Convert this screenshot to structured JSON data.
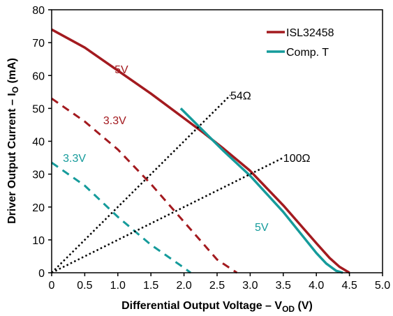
{
  "chart_data": {
    "type": "line",
    "xlabel": {
      "main": "Differential Output Voltage – V",
      "sub": "OD",
      "unit": " (V)"
    },
    "ylabel": {
      "main": "Driver Output Current – I",
      "sub": "O",
      "unit": " (mA)"
    },
    "xlim": [
      0,
      5
    ],
    "ylim": [
      0,
      80
    ],
    "xticks": [
      "0",
      "0.5",
      "1.0",
      "1.5",
      "2.0",
      "2.5",
      "3.0",
      "3.5",
      "4.0",
      "4.5",
      "5.0"
    ],
    "yticks": [
      "0",
      "10",
      "20",
      "30",
      "40",
      "50",
      "60",
      "70",
      "80"
    ],
    "grid": false,
    "legend_position": "top-right",
    "colors": {
      "isl": "#a31a1f",
      "comp": "#159b9b",
      "load": "#000000"
    },
    "series": [
      {
        "name": "ISL32458",
        "supply": "5V",
        "color": "#a31a1f",
        "style": "solid",
        "x": [
          0,
          0.5,
          1.0,
          1.5,
          2.0,
          2.3,
          2.6,
          3.0,
          3.5,
          4.0,
          4.2,
          4.35,
          4.5
        ],
        "y": [
          74,
          68.5,
          61.5,
          54.5,
          47,
          42.5,
          37.7,
          31,
          20.5,
          9,
          4.5,
          1.8,
          0
        ]
      },
      {
        "name": "ISL32458",
        "supply": "3.3V",
        "color": "#a31a1f",
        "style": "dashed",
        "x": [
          0,
          0.5,
          1.0,
          1.5,
          2.0,
          2.5,
          2.8
        ],
        "y": [
          53,
          46,
          37.5,
          27,
          15.5,
          4,
          0
        ]
      },
      {
        "name": "Comp. T",
        "supply": "5V",
        "color": "#159b9b",
        "style": "solid",
        "x": [
          1.95,
          2.3,
          2.6,
          3.0,
          3.5,
          4.0,
          4.15,
          4.3,
          4.4
        ],
        "y": [
          50,
          43,
          37,
          29.5,
          18.5,
          6,
          2.8,
          0.6,
          0
        ]
      },
      {
        "name": "Comp. T",
        "supply": "3.3V",
        "color": "#159b9b",
        "style": "dashed",
        "x": [
          0,
          0.5,
          1.0,
          1.5,
          2.0,
          2.1
        ],
        "y": [
          33.5,
          26.5,
          17,
          8.5,
          1.5,
          0
        ]
      },
      {
        "name": "54Ω",
        "color": "#000000",
        "style": "dotted",
        "x": [
          0,
          2.7
        ],
        "y": [
          0,
          54
        ]
      },
      {
        "name": "100Ω",
        "color": "#000000",
        "style": "dotted",
        "x": [
          0,
          3.5
        ],
        "y": [
          0,
          35
        ]
      }
    ],
    "legend": [
      {
        "label": "ISL32458",
        "color": "#a31a1f"
      },
      {
        "label": "Comp. T",
        "color": "#159b9b"
      }
    ],
    "annotations": [
      {
        "text": "5V",
        "x": 0.95,
        "y": 62,
        "color": "#a31a1f"
      },
      {
        "text": "3.3V",
        "x": 0.78,
        "y": 46.5,
        "color": "#a31a1f"
      },
      {
        "text": "3.3V",
        "x": 0.17,
        "y": 35,
        "color": "#159b9b"
      },
      {
        "text": "5V",
        "x": 3.07,
        "y": 14,
        "color": "#159b9b"
      },
      {
        "text": "54Ω",
        "x": 2.7,
        "y": 54,
        "color": "#000000"
      },
      {
        "text": "100Ω",
        "x": 3.5,
        "y": 35,
        "color": "#000000"
      }
    ]
  }
}
